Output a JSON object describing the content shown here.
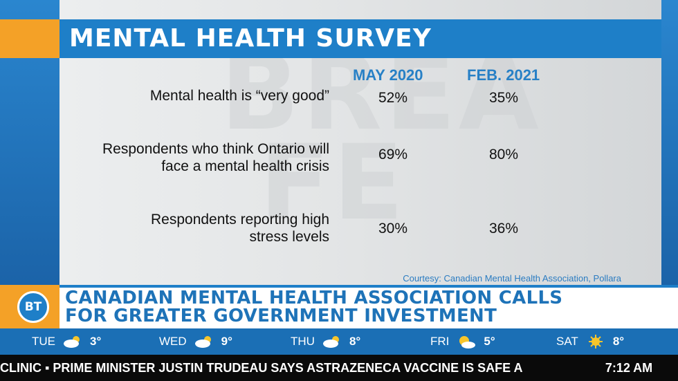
{
  "survey": {
    "title": "MENTAL HEALTH SURVEY",
    "columns": [
      "MAY 2020",
      "FEB. 2021"
    ],
    "rows": [
      {
        "label": "Mental health is “very good”",
        "may": "52%",
        "feb": "35%"
      },
      {
        "label": "Respondents who think Ontario will face a mental health crisis",
        "may": "69%",
        "feb": "80%"
      },
      {
        "label": "Respondents reporting high stress levels",
        "may": "30%",
        "feb": "36%"
      }
    ],
    "courtesy": "Courtesy: Canadian Mental Health Association, Pollara"
  },
  "lower_third": {
    "logo": "BT",
    "headline_line1": "CANADIAN MENTAL HEALTH ASSOCIATION CALLS",
    "headline_line2": "FOR GREATER GOVERNMENT INVESTMENT"
  },
  "weather": [
    {
      "day": "TUE",
      "icon": "cloud-sun-icon",
      "temp": "3°"
    },
    {
      "day": "WED",
      "icon": "cloud-sun-icon",
      "temp": "9°"
    },
    {
      "day": "THU",
      "icon": "cloud-sun-icon",
      "temp": "8°"
    },
    {
      "day": "FRI",
      "icon": "sun-cloud-icon",
      "temp": "5°"
    },
    {
      "day": "SAT",
      "icon": "sun-icon",
      "temp": "8°"
    }
  ],
  "ticker": {
    "text": "CLINIC  ▪ PRIME MINISTER JUSTIN TRUDEAU SAYS ASTRAZENECA VACCINE IS SAFE A",
    "time": "7:12 AM"
  },
  "colors": {
    "brand_blue": "#1e7fc8",
    "accent_orange": "#f4a127",
    "header_blue": "#2780c6"
  }
}
